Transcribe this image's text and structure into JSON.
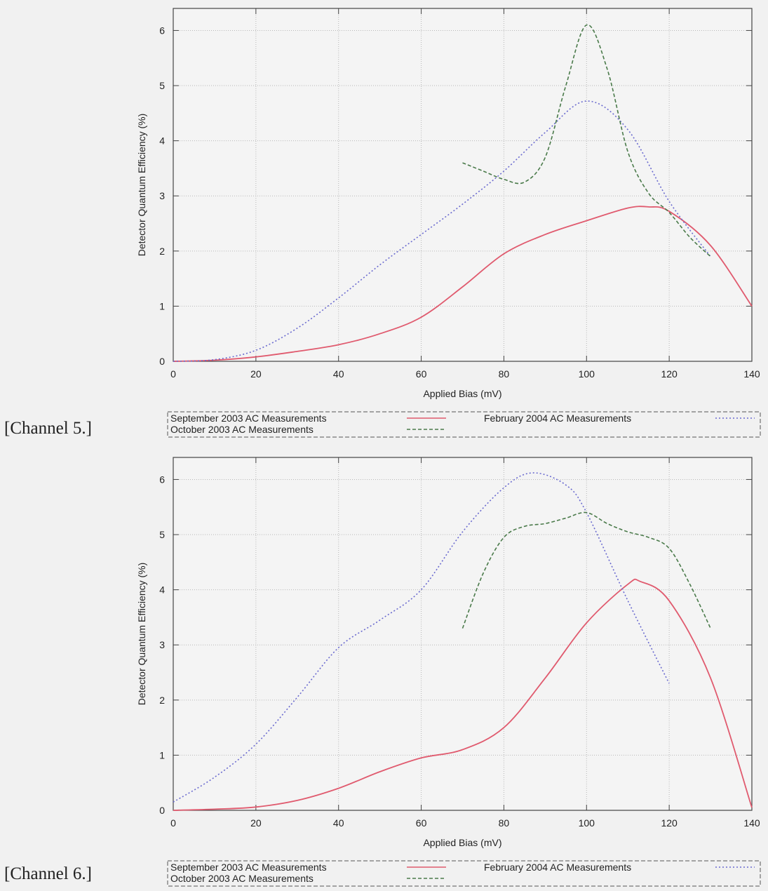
{
  "chart_data": [
    {
      "type": "line",
      "caption": "[Channel 5.]",
      "xlabel": "Applied Bias (mV)",
      "ylabel": "Detector Quantum Efficiency (%)",
      "xlim": [
        0,
        140
      ],
      "ylim": [
        0,
        6.4
      ],
      "xticks": [
        0,
        20,
        40,
        60,
        80,
        100,
        120,
        140
      ],
      "yticks": [
        0,
        1,
        2,
        3,
        4,
        5,
        6
      ],
      "grid": true,
      "legend_position": "below",
      "series": [
        {
          "name": "September 2003 AC Measurements",
          "color": "#e05a6e",
          "style": "solid",
          "x": [
            0,
            10,
            20,
            30,
            40,
            50,
            60,
            70,
            80,
            90,
            100,
            110,
            115,
            120,
            130,
            140
          ],
          "y": [
            0,
            0.02,
            0.08,
            0.18,
            0.3,
            0.5,
            0.8,
            1.35,
            1.95,
            2.3,
            2.55,
            2.78,
            2.8,
            2.72,
            2.1,
            1.0
          ]
        },
        {
          "name": "February 2004 AC Measurements",
          "color": "#6a6acf",
          "style": "dotted",
          "x": [
            0,
            10,
            20,
            30,
            40,
            50,
            60,
            70,
            80,
            90,
            100,
            110,
            120,
            130
          ],
          "y": [
            0,
            0.03,
            0.2,
            0.6,
            1.15,
            1.75,
            2.3,
            2.85,
            3.45,
            4.15,
            4.72,
            4.2,
            2.9,
            1.9
          ]
        },
        {
          "name": "October 2003 AC Measurements",
          "color": "#4a7a4a",
          "style": "dashed",
          "x": [
            70,
            75,
            80,
            85,
            90,
            95,
            100,
            105,
            110,
            115,
            120,
            125,
            130
          ],
          "y": [
            3.6,
            3.45,
            3.3,
            3.25,
            3.7,
            5.0,
            6.1,
            5.3,
            3.8,
            3.05,
            2.7,
            2.25,
            1.9
          ]
        }
      ]
    },
    {
      "type": "line",
      "caption": "[Channel 6.]",
      "xlabel": "Applied Bias (mV)",
      "ylabel": "Detector Quantum Efficiency (%)",
      "xlim": [
        0,
        140
      ],
      "ylim": [
        0,
        6.4
      ],
      "xticks": [
        0,
        20,
        40,
        60,
        80,
        100,
        120,
        140
      ],
      "yticks": [
        0,
        1,
        2,
        3,
        4,
        5,
        6
      ],
      "grid": true,
      "legend_position": "below",
      "series": [
        {
          "name": "September 2003 AC Measurements",
          "color": "#e05a6e",
          "style": "solid",
          "x": [
            0,
            10,
            20,
            30,
            40,
            50,
            60,
            70,
            80,
            90,
            100,
            110,
            113,
            120,
            130,
            140
          ],
          "y": [
            0,
            0.02,
            0.06,
            0.18,
            0.4,
            0.7,
            0.95,
            1.1,
            1.5,
            2.4,
            3.4,
            4.1,
            4.15,
            3.8,
            2.4,
            0.05
          ]
        },
        {
          "name": "February 2004 AC Measurements",
          "color": "#6a6acf",
          "style": "dotted",
          "x": [
            0,
            10,
            20,
            30,
            40,
            50,
            60,
            70,
            80,
            87,
            95,
            100,
            110,
            120
          ],
          "y": [
            0.15,
            0.6,
            1.2,
            2.05,
            2.95,
            3.45,
            4.0,
            5.05,
            5.85,
            6.12,
            5.9,
            5.4,
            3.8,
            2.3
          ]
        },
        {
          "name": "October 2003 AC Measurements",
          "color": "#4a7a4a",
          "style": "dashed",
          "x": [
            70,
            75,
            80,
            85,
            90,
            95,
            100,
            105,
            110,
            115,
            120,
            125,
            130
          ],
          "y": [
            3.3,
            4.3,
            4.95,
            5.15,
            5.2,
            5.3,
            5.4,
            5.2,
            5.05,
            4.95,
            4.75,
            4.1,
            3.3
          ]
        }
      ]
    }
  ]
}
